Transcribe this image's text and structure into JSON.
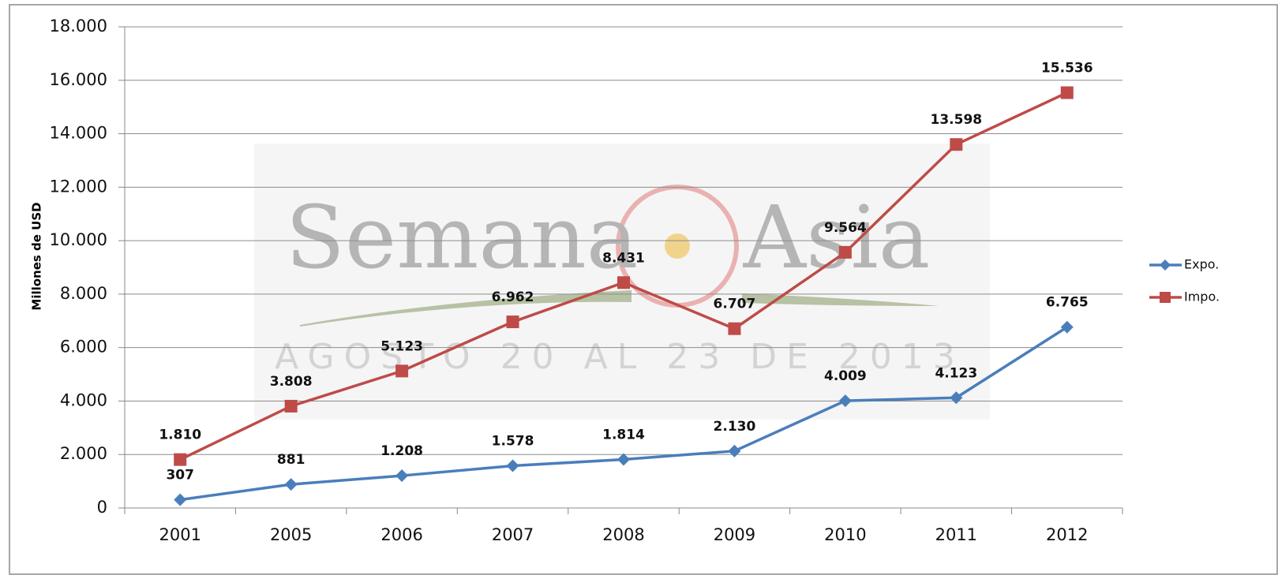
{
  "chart_data": {
    "type": "line",
    "y_label": "Millones de USD",
    "categories": [
      "2001",
      "2005",
      "2006",
      "2007",
      "2008",
      "2009",
      "2010",
      "2011",
      "2012"
    ],
    "series": [
      {
        "name": "Expo.",
        "color": "#4a7ebb",
        "marker": "diamond",
        "values": [
          307,
          881,
          1208,
          1578,
          1814,
          2130,
          4009,
          4123,
          6765
        ],
        "value_labels": [
          "307",
          "881",
          "1.208",
          "1.578",
          "1.814",
          "2.130",
          "4.009",
          "4.123",
          "6.765"
        ]
      },
      {
        "name": "Impo.",
        "color": "#be4b48",
        "marker": "square",
        "values": [
          1810,
          3808,
          5123,
          6962,
          8431,
          6707,
          9564,
          13598,
          15536
        ],
        "value_labels": [
          "1.810",
          "3.808",
          "5.123",
          "6.962",
          "8.431",
          "6.707",
          "9.564",
          "13.598",
          "15.536"
        ]
      }
    ],
    "ylim": [
      0,
      18000
    ],
    "yticks": [
      0,
      {
        "value": 2000,
        "label": "2.000"
      },
      {
        "value": 4000,
        "label": "4.000"
      },
      {
        "value": 6000,
        "label": "6.000"
      },
      {
        "value": 8000,
        "label": "8.000"
      },
      {
        "value": 10000,
        "label": "10.000"
      },
      {
        "value": 12000,
        "label": "12.000"
      },
      {
        "value": 14000,
        "label": "14.000"
      },
      {
        "value": 16000,
        "label": "16.000"
      },
      {
        "value": 18000,
        "label": "18.000"
      }
    ],
    "grid": true,
    "legend": "right",
    "watermark": [
      "Semana",
      "Asia",
      "AGOSTO 20 AL 23 DE 2013"
    ]
  }
}
